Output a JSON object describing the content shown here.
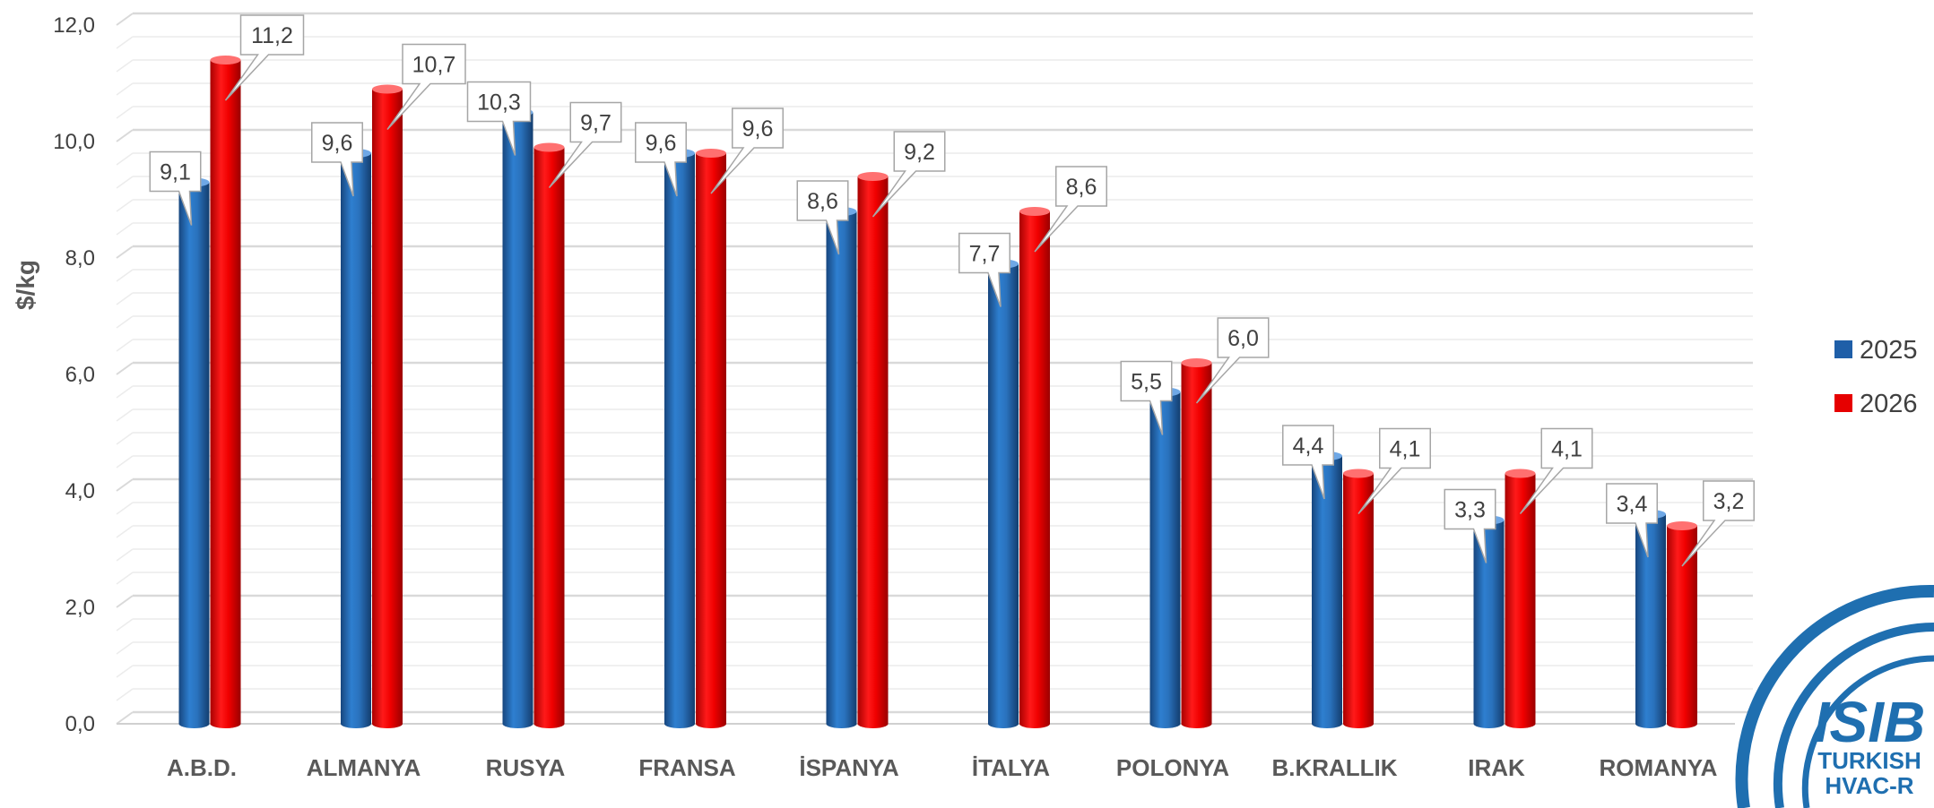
{
  "chart_data": {
    "type": "bar",
    "title": "",
    "xlabel": "",
    "ylabel": "$/kg",
    "ylim": [
      0,
      12
    ],
    "yticks": [
      "0,0",
      "2,0",
      "4,0",
      "6,0",
      "8,0",
      "10,0",
      "12,0"
    ],
    "grid": true,
    "legend_position": "right",
    "categories": [
      "A.B.D.",
      "ALMANYA",
      "RUSYA",
      "FRANSA",
      "İSPANYA",
      "İTALYA",
      "POLONYA",
      "B.KRALLIK",
      "IRAK",
      "ROMANYA"
    ],
    "series": [
      {
        "name": "2025",
        "color": "#1f5fa8",
        "values": [
          9.1,
          9.6,
          10.3,
          9.6,
          8.6,
          7.7,
          5.5,
          4.4,
          3.3,
          3.4
        ],
        "labels": [
          "9,1",
          "9,6",
          "10,3",
          "9,6",
          "8,6",
          "7,7",
          "5,5",
          "4,4",
          "3,3",
          "3,4"
        ]
      },
      {
        "name": "2026",
        "color": "#e60000",
        "values": [
          11.2,
          10.7,
          9.7,
          9.6,
          9.2,
          8.6,
          6.0,
          4.1,
          4.1,
          3.2
        ],
        "labels": [
          "11,2",
          "10,7",
          "9,7",
          "9,6",
          "9,2",
          "8,6",
          "6,0",
          "4,1",
          "4,1",
          "3,2"
        ]
      }
    ]
  },
  "logo": {
    "name": "ISIB",
    "line1": "TURKISH",
    "line2": "HVAC-R",
    "color": "#1f6fb0"
  }
}
